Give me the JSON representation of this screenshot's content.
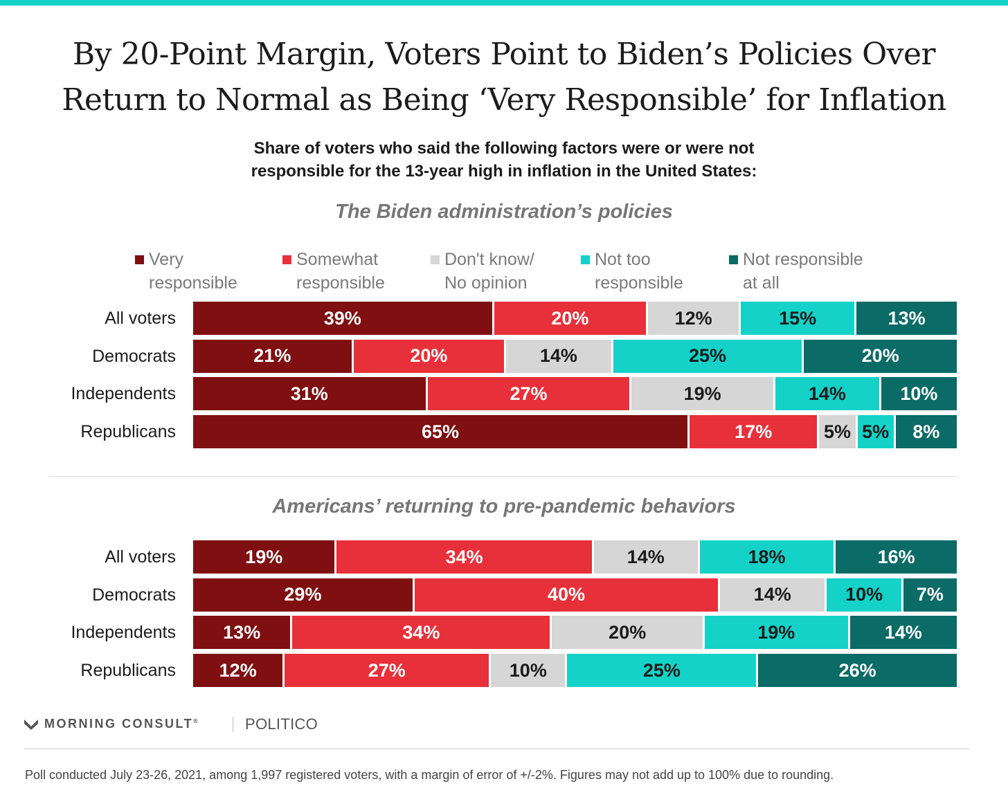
{
  "colors": {
    "accent_bar": "#14d2c8",
    "very": "#7f0f11",
    "somewhat": "#e8303a",
    "dontknow": "#d6d6d6",
    "nottoo": "#14d2c8",
    "notatall": "#0b6b66"
  },
  "title_lines": [
    "By 20-Point Margin, Voters Point to Biden’s Policies Over",
    "Return to Normal as Being ‘Very Responsible’ for Inflation"
  ],
  "subtitle_lines": [
    "Share of voters who said the following factors were or were not",
    "responsible for the 13-year high in inflation in the United States:"
  ],
  "legend": [
    {
      "line1": "Very",
      "line2": "responsible",
      "color": "#7f0f11"
    },
    {
      "line1": "Somewhat",
      "line2": "responsible",
      "color": "#e8303a"
    },
    {
      "line1": "Don't know/",
      "line2": "No opinion",
      "color": "#d6d6d6"
    },
    {
      "line1": "Not too",
      "line2": "responsible",
      "color": "#14d2c8"
    },
    {
      "line1": "Not responsible",
      "line2": "at all",
      "color": "#0b6b66"
    }
  ],
  "chart_data": [
    {
      "type": "bar",
      "stacked": true,
      "orientation": "horizontal",
      "title": "The Biden administration’s policies",
      "categories": [
        "All voters",
        "Democrats",
        "Independents",
        "Republicans"
      ],
      "series": [
        {
          "name": "Very responsible",
          "color": "#7f0f11",
          "values": [
            39,
            21,
            31,
            65
          ]
        },
        {
          "name": "Somewhat responsible",
          "color": "#e8303a",
          "values": [
            20,
            20,
            27,
            17
          ]
        },
        {
          "name": "Don't know/ No opinion",
          "color": "#d6d6d6",
          "values": [
            12,
            14,
            19,
            5
          ]
        },
        {
          "name": "Not too responsible",
          "color": "#14d2c8",
          "values": [
            15,
            25,
            14,
            5
          ]
        },
        {
          "name": "Not responsible at all",
          "color": "#0b6b66",
          "values": [
            13,
            20,
            10,
            8
          ]
        }
      ],
      "value_suffix": "%",
      "legend_position": "top"
    },
    {
      "type": "bar",
      "stacked": true,
      "orientation": "horizontal",
      "title": "Americans’ returning to pre-pandemic behaviors",
      "categories": [
        "All voters",
        "Democrats",
        "Independents",
        "Republicans"
      ],
      "series": [
        {
          "name": "Very responsible",
          "color": "#7f0f11",
          "values": [
            19,
            29,
            13,
            12
          ]
        },
        {
          "name": "Somewhat responsible",
          "color": "#e8303a",
          "values": [
            34,
            40,
            34,
            27
          ]
        },
        {
          "name": "Don't know/ No opinion",
          "color": "#d6d6d6",
          "values": [
            14,
            14,
            20,
            10
          ]
        },
        {
          "name": "Not too responsible",
          "color": "#14d2c8",
          "values": [
            18,
            10,
            19,
            25
          ]
        },
        {
          "name": "Not responsible at all",
          "color": "#0b6b66",
          "values": [
            16,
            7,
            14,
            26
          ]
        }
      ],
      "value_suffix": "%",
      "legend_position": "top"
    }
  ],
  "footer": {
    "brand": "MORNING CONSULT",
    "brand_mark": "®",
    "partner": "POLITICO",
    "note": "Poll conducted July 23-26, 2021, among 1,997 registered voters, with a margin of error of +/-2%. Figures may not add up to 100% due to rounding."
  }
}
